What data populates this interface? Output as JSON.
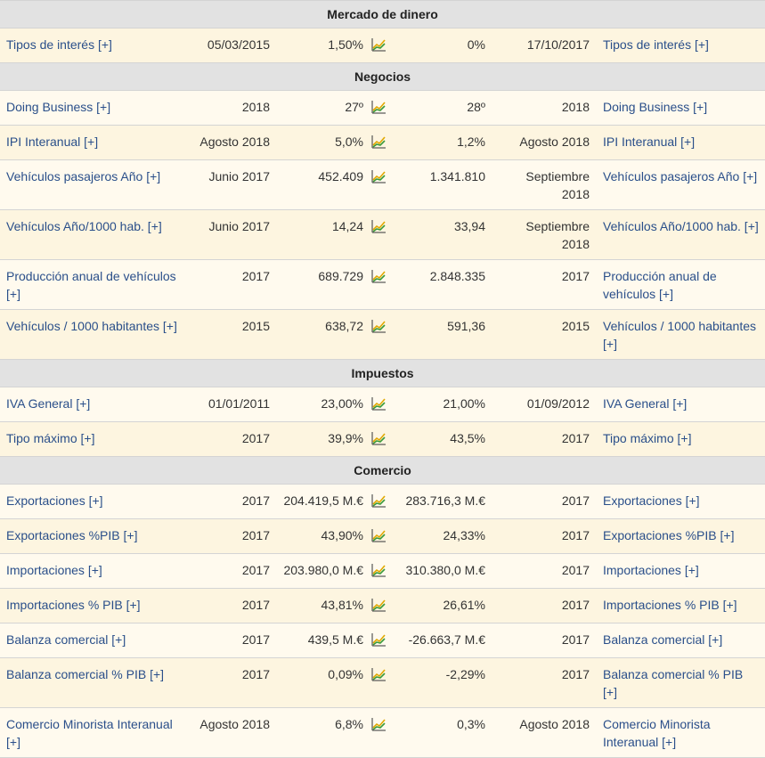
{
  "sections": [
    {
      "title": "Mercado de dinero",
      "rows": [
        {
          "label": "Tipos de interés [+]",
          "date1": "05/03/2015",
          "val1": "1,50%",
          "val2": "0%",
          "date2": "17/10/2017",
          "label2": "Tipos de interés [+]"
        }
      ]
    },
    {
      "title": "Negocios",
      "rows": [
        {
          "label": "Doing Business [+]",
          "date1": "2018",
          "val1": "27º",
          "val2": "28º",
          "date2": "2018",
          "label2": "Doing Business [+]"
        },
        {
          "label": "IPI Interanual [+]",
          "date1": "Agosto 2018",
          "val1": "5,0%",
          "val2": "1,2%",
          "date2": "Agosto 2018",
          "label2": "IPI Interanual [+]"
        },
        {
          "label": "Vehículos pasajeros Año [+]",
          "date1": "Junio 2017",
          "val1": "452.409",
          "val2": "1.341.810",
          "date2": "Septiembre 2018",
          "label2": "Vehículos pasajeros Año [+]"
        },
        {
          "label": "Vehículos Año/1000 hab. [+]",
          "date1": "Junio 2017",
          "val1": "14,24",
          "val2": "33,94",
          "date2": "Septiembre 2018",
          "label2": "Vehículos Año/1000 hab. [+]"
        },
        {
          "label": "Producción anual de vehículos [+]",
          "date1": "2017",
          "val1": "689.729",
          "val2": "2.848.335",
          "date2": "2017",
          "label2": "Producción anual de vehículos [+]"
        },
        {
          "label": "Vehículos / 1000 habitantes [+]",
          "date1": "2015",
          "val1": "638,72",
          "val2": "591,36",
          "date2": "2015",
          "label2": "Vehículos / 1000 habitantes [+]"
        }
      ]
    },
    {
      "title": "Impuestos",
      "rows": [
        {
          "label": "IVA General [+]",
          "date1": "01/01/2011",
          "val1": "23,00%",
          "val2": "21,00%",
          "date2": "01/09/2012",
          "label2": "IVA General [+]"
        },
        {
          "label": "Tipo máximo [+]",
          "date1": "2017",
          "val1": "39,9%",
          "val2": "43,5%",
          "date2": "2017",
          "label2": "Tipo máximo [+]"
        }
      ]
    },
    {
      "title": "Comercio",
      "rows": [
        {
          "label": "Exportaciones [+]",
          "date1": "2017",
          "val1": "204.419,5 M.€",
          "val2": "283.716,3 M.€",
          "date2": "2017",
          "label2": "Exportaciones [+]"
        },
        {
          "label": "Exportaciones %PIB [+]",
          "date1": "2017",
          "val1": "43,90%",
          "val2": "24,33%",
          "date2": "2017",
          "label2": "Exportaciones %PIB [+]"
        },
        {
          "label": "Importaciones [+]",
          "date1": "2017",
          "val1": "203.980,0 M.€",
          "val2": "310.380,0 M.€",
          "date2": "2017",
          "label2": "Importaciones [+]"
        },
        {
          "label": "Importaciones % PIB [+]",
          "date1": "2017",
          "val1": "43,81%",
          "val2": "26,61%",
          "date2": "2017",
          "label2": "Importaciones % PIB [+]"
        },
        {
          "label": "Balanza comercial [+]",
          "date1": "2017",
          "val1": "439,5 M.€",
          "val2": "-26.663,7 M.€",
          "date2": "2017",
          "label2": "Balanza comercial [+]"
        },
        {
          "label": "Balanza comercial % PIB [+]",
          "date1": "2017",
          "val1": "0,09%",
          "val2": "-2,29%",
          "date2": "2017",
          "label2": "Balanza comercial % PIB [+]"
        },
        {
          "label": "Comercio Minorista Interanual [+]",
          "date1": "Agosto 2018",
          "val1": "6,8%",
          "val2": "0,3%",
          "date2": "Agosto 2018",
          "label2": "Comercio Minorista Interanual [+]"
        }
      ]
    }
  ],
  "icons": {
    "compare": "line-chart-icon"
  },
  "colors": {
    "link": "#2a4f8a",
    "section_bg": "#e2e2e2",
    "row_bg_a": "#fdf5e0",
    "row_bg_b": "#fffaee"
  }
}
